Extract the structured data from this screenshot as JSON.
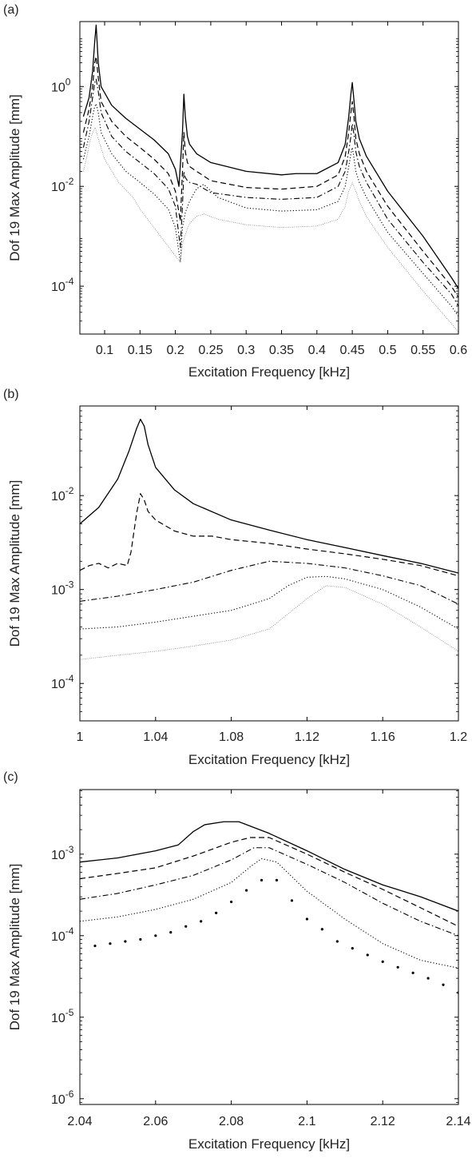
{
  "chart_data": [
    {
      "panel_label": "(a)",
      "type": "line",
      "xlabel": "Excitation Frequency [kHz]",
      "ylabel": "Dof 19 Max Amplitude [mm]",
      "xlim": [
        0.065,
        0.6
      ],
      "ylim": [
        1.1e-05,
        20
      ],
      "yscale": "log",
      "xticks": [
        0.1,
        0.15,
        0.2,
        0.25,
        0.3,
        0.35,
        0.4,
        0.45,
        0.5,
        0.55,
        0.6
      ],
      "xtick_labels": [
        "0.1",
        "0.15",
        "0.2",
        "0.25",
        "0.3",
        "0.35",
        "0.4",
        "0.45",
        "0.5",
        "0.55",
        "0.6"
      ],
      "yticks": [
        1,
        0.01,
        0.0001
      ],
      "ytick_labels": [
        {
          "base": "10",
          "exp": "0"
        },
        {
          "base": "10",
          "exp": "-2"
        },
        {
          "base": "10",
          "exp": "-4"
        }
      ],
      "grid": false,
      "series": [
        {
          "style": "solid",
          "x": [
            0.07,
            0.078,
            0.083,
            0.086,
            0.088,
            0.091,
            0.095,
            0.11,
            0.13,
            0.15,
            0.17,
            0.19,
            0.2,
            0.205,
            0.21,
            0.212,
            0.214,
            0.217,
            0.22,
            0.23,
            0.25,
            0.3,
            0.35,
            0.37,
            0.4,
            0.43,
            0.44,
            0.445,
            0.448,
            0.45,
            0.452,
            0.455,
            0.46,
            0.47,
            0.5,
            0.55,
            0.59,
            0.6
          ],
          "y": [
            0.25,
            0.6,
            2.0,
            8,
            17,
            3,
            1.0,
            0.42,
            0.23,
            0.14,
            0.085,
            0.045,
            0.022,
            0.01,
            0.12,
            0.7,
            0.25,
            0.1,
            0.07,
            0.045,
            0.03,
            0.02,
            0.017,
            0.018,
            0.018,
            0.03,
            0.07,
            0.25,
            0.7,
            1.2,
            0.6,
            0.2,
            0.09,
            0.04,
            0.008,
            0.001,
            0.00015,
            9e-05
          ]
        },
        {
          "style": "dashed",
          "x": [
            0.07,
            0.078,
            0.083,
            0.086,
            0.088,
            0.091,
            0.095,
            0.11,
            0.13,
            0.15,
            0.17,
            0.19,
            0.2,
            0.207,
            0.21,
            0.212,
            0.214,
            0.217,
            0.22,
            0.23,
            0.25,
            0.3,
            0.35,
            0.4,
            0.43,
            0.44,
            0.445,
            0.448,
            0.45,
            0.452,
            0.455,
            0.46,
            0.47,
            0.5,
            0.55,
            0.59,
            0.6
          ],
          "y": [
            0.12,
            0.35,
            1.0,
            3.0,
            4.0,
            1.5,
            0.5,
            0.2,
            0.1,
            0.06,
            0.035,
            0.018,
            0.008,
            0.002,
            0.02,
            0.12,
            0.05,
            0.03,
            0.025,
            0.02,
            0.013,
            0.0095,
            0.0088,
            0.01,
            0.017,
            0.04,
            0.12,
            0.3,
            0.5,
            0.28,
            0.09,
            0.045,
            0.02,
            0.004,
            0.0005,
            0.0001,
            6e-05
          ]
        },
        {
          "style": "dashdot",
          "x": [
            0.07,
            0.078,
            0.083,
            0.086,
            0.088,
            0.091,
            0.095,
            0.11,
            0.13,
            0.15,
            0.17,
            0.19,
            0.2,
            0.207,
            0.21,
            0.212,
            0.214,
            0.217,
            0.22,
            0.23,
            0.25,
            0.3,
            0.35,
            0.4,
            0.43,
            0.44,
            0.445,
            0.448,
            0.45,
            0.452,
            0.455,
            0.46,
            0.47,
            0.5,
            0.55,
            0.59,
            0.6
          ],
          "y": [
            0.06,
            0.2,
            0.6,
            1.2,
            1.4,
            0.8,
            0.3,
            0.1,
            0.05,
            0.03,
            0.018,
            0.009,
            0.004,
            0.0006,
            0.004,
            0.02,
            0.015,
            0.013,
            0.012,
            0.011,
            0.0075,
            0.006,
            0.0055,
            0.006,
            0.01,
            0.02,
            0.05,
            0.1,
            0.18,
            0.12,
            0.05,
            0.025,
            0.012,
            0.0022,
            0.0003,
            7e-05,
            4e-05
          ]
        },
        {
          "style": "dotted",
          "x": [
            0.07,
            0.078,
            0.083,
            0.086,
            0.088,
            0.091,
            0.095,
            0.11,
            0.13,
            0.15,
            0.17,
            0.19,
            0.2,
            0.207,
            0.21,
            0.214,
            0.22,
            0.23,
            0.24,
            0.26,
            0.3,
            0.35,
            0.4,
            0.43,
            0.44,
            0.445,
            0.448,
            0.45,
            0.452,
            0.455,
            0.46,
            0.47,
            0.5,
            0.55,
            0.59,
            0.6
          ],
          "y": [
            0.035,
            0.1,
            0.25,
            0.4,
            0.45,
            0.3,
            0.12,
            0.045,
            0.02,
            0.012,
            0.007,
            0.0035,
            0.0015,
            0.0003,
            0.0015,
            0.003,
            0.005,
            0.009,
            0.011,
            0.006,
            0.0037,
            0.0032,
            0.0034,
            0.005,
            0.01,
            0.025,
            0.045,
            0.06,
            0.04,
            0.02,
            0.012,
            0.006,
            0.0012,
            0.00018,
            4e-05,
            2.5e-05
          ]
        },
        {
          "style": "finedot",
          "x": [
            0.07,
            0.075,
            0.08,
            0.085,
            0.087,
            0.09,
            0.1,
            0.12,
            0.14,
            0.15,
            0.207,
            0.21,
            0.215,
            0.22,
            0.23,
            0.24,
            0.26,
            0.3,
            0.35,
            0.4,
            0.43,
            0.44,
            0.445,
            0.45,
            0.455,
            0.46,
            0.47,
            0.5,
            0.55,
            0.59,
            0.6
          ],
          "y": [
            0.02,
            0.04,
            0.09,
            0.14,
            0.15,
            0.1,
            0.035,
            0.012,
            0.006,
            0.0035,
            0.0003,
            0.0007,
            0.0012,
            0.0018,
            0.0025,
            0.0028,
            0.0022,
            0.0017,
            0.0015,
            0.0016,
            0.0022,
            0.004,
            0.008,
            0.012,
            0.008,
            0.005,
            0.0025,
            0.0006,
            8e-05,
            1.8e-05,
            1.2e-05
          ]
        }
      ]
    },
    {
      "panel_label": "(b)",
      "type": "line",
      "xlabel": "Excitation Frequency [kHz]",
      "ylabel": "Dof 19 Max Amplitude [mm]",
      "xlim": [
        1.0,
        1.2
      ],
      "ylim": [
        4e-05,
        0.09
      ],
      "yscale": "log",
      "xticks": [
        1.0,
        1.04,
        1.08,
        1.12,
        1.16,
        1.2
      ],
      "xtick_labels": [
        "1",
        "1.04",
        "1.08",
        "1.12",
        "1.16",
        "1.2"
      ],
      "yticks": [
        0.01,
        0.001,
        0.0001
      ],
      "ytick_labels": [
        {
          "base": "10",
          "exp": "-2"
        },
        {
          "base": "10",
          "exp": "-3"
        },
        {
          "base": "10",
          "exp": "-4"
        }
      ],
      "grid": false,
      "series": [
        {
          "style": "solid",
          "x": [
            1.0,
            1.01,
            1.02,
            1.026,
            1.03,
            1.032,
            1.034,
            1.036,
            1.04,
            1.05,
            1.06,
            1.08,
            1.1,
            1.12,
            1.14,
            1.16,
            1.18,
            1.2
          ],
          "y": [
            0.005,
            0.0075,
            0.015,
            0.03,
            0.052,
            0.065,
            0.055,
            0.035,
            0.02,
            0.0115,
            0.0082,
            0.0055,
            0.0043,
            0.0034,
            0.0028,
            0.0023,
            0.0019,
            0.0015
          ]
        },
        {
          "style": "dashed",
          "x": [
            1.0,
            1.005,
            1.01,
            1.015,
            1.02,
            1.025,
            1.027,
            1.03,
            1.032,
            1.034,
            1.036,
            1.04,
            1.05,
            1.06,
            1.07,
            1.08,
            1.1,
            1.12,
            1.14,
            1.16,
            1.18,
            1.2
          ],
          "y": [
            0.0016,
            0.0018,
            0.0019,
            0.0017,
            0.0019,
            0.0018,
            0.0025,
            0.0065,
            0.0105,
            0.009,
            0.0068,
            0.0055,
            0.0042,
            0.0037,
            0.0037,
            0.0034,
            0.0031,
            0.0027,
            0.0024,
            0.0021,
            0.0018,
            0.0014
          ]
        },
        {
          "style": "dashdot",
          "x": [
            1.0,
            1.02,
            1.04,
            1.06,
            1.08,
            1.1,
            1.12,
            1.14,
            1.16,
            1.18,
            1.2
          ],
          "y": [
            0.00075,
            0.00085,
            0.001,
            0.0012,
            0.0016,
            0.002,
            0.0019,
            0.0017,
            0.0014,
            0.0011,
            0.0007
          ]
        },
        {
          "style": "dotted",
          "x": [
            1.0,
            1.02,
            1.04,
            1.06,
            1.08,
            1.1,
            1.11,
            1.12,
            1.13,
            1.14,
            1.16,
            1.18,
            1.2
          ],
          "y": [
            0.00038,
            0.0004,
            0.00045,
            0.00052,
            0.0006,
            0.0008,
            0.0011,
            0.00135,
            0.00138,
            0.0013,
            0.001,
            0.00065,
            0.00038
          ]
        },
        {
          "style": "finedot",
          "x": [
            1.0,
            1.02,
            1.04,
            1.06,
            1.08,
            1.1,
            1.12,
            1.13,
            1.14,
            1.16,
            1.18,
            1.2
          ],
          "y": [
            0.00018,
            0.0002,
            0.00022,
            0.00025,
            0.00029,
            0.00038,
            0.0008,
            0.0011,
            0.00105,
            0.0007,
            0.0004,
            0.00022
          ]
        }
      ]
    },
    {
      "panel_label": "(c)",
      "type": "line",
      "xlabel": "Excitation Frequency [kHz]",
      "ylabel": "Dof 19 Max Amplitude [mm]",
      "xlim": [
        2.04,
        2.14
      ],
      "ylim": [
        8.5e-07,
        0.0062
      ],
      "yscale": "log",
      "xticks": [
        2.04,
        2.06,
        2.08,
        2.1,
        2.12,
        2.14
      ],
      "xtick_labels": [
        "2.04",
        "2.06",
        "2.08",
        "2.1",
        "2.12",
        "2.14"
      ],
      "yticks": [
        0.001,
        0.0001,
        1e-05,
        1e-06
      ],
      "ytick_labels": [
        {
          "base": "10",
          "exp": "-3"
        },
        {
          "base": "10",
          "exp": "-4"
        },
        {
          "base": "10",
          "exp": "-5"
        },
        {
          "base": "10",
          "exp": "-6"
        }
      ],
      "grid": false,
      "series": [
        {
          "style": "solid",
          "x": [
            2.04,
            2.05,
            2.06,
            2.066,
            2.07,
            2.073,
            2.078,
            2.082,
            2.09,
            2.1,
            2.11,
            2.12,
            2.13,
            2.14
          ],
          "y": [
            0.0008,
            0.0009,
            0.0011,
            0.0013,
            0.0019,
            0.0023,
            0.0025,
            0.0025,
            0.0018,
            0.0011,
            0.00065,
            0.00042,
            0.0003,
            0.0002
          ]
        },
        {
          "style": "dashed",
          "x": [
            2.04,
            2.05,
            2.06,
            2.07,
            2.08,
            2.085,
            2.09,
            2.1,
            2.11,
            2.12,
            2.13,
            2.14
          ],
          "y": [
            0.0005,
            0.00058,
            0.00068,
            0.00095,
            0.0014,
            0.0016,
            0.0016,
            0.001,
            0.0006,
            0.00037,
            0.00022,
            0.00013
          ]
        },
        {
          "style": "dashdot",
          "x": [
            2.04,
            2.05,
            2.06,
            2.07,
            2.08,
            2.086,
            2.09,
            2.1,
            2.11,
            2.12,
            2.13,
            2.14
          ],
          "y": [
            0.00028,
            0.00033,
            0.00042,
            0.00055,
            0.00085,
            0.0012,
            0.0012,
            0.00075,
            0.00045,
            0.00025,
            0.00015,
            0.0001
          ]
        },
        {
          "style": "dotted",
          "x": [
            2.04,
            2.05,
            2.06,
            2.07,
            2.08,
            2.085,
            2.088,
            2.092,
            2.1,
            2.11,
            2.12,
            2.13,
            2.14
          ],
          "y": [
            0.00015,
            0.00017,
            0.00021,
            0.00028,
            0.00045,
            0.0007,
            0.00088,
            0.0008,
            0.00035,
            0.00016,
            8e-05,
            5e-05,
            4e-05
          ]
        },
        {
          "style": "markers",
          "x": [
            2.044,
            2.048,
            2.052,
            2.056,
            2.06,
            2.064,
            2.068,
            2.072,
            2.076,
            2.08,
            2.084,
            2.088,
            2.092,
            2.096,
            2.1,
            2.104,
            2.108,
            2.112,
            2.116,
            2.12,
            2.124,
            2.128,
            2.132,
            2.136,
            2.14
          ],
          "y": [
            7.5e-05,
            8e-05,
            8.5e-05,
            9e-05,
            0.0001,
            0.00011,
            0.00013,
            0.00015,
            0.00019,
            0.00026,
            0.00036,
            0.00048,
            0.00048,
            0.00027,
            0.00016,
            0.00012,
            8.5e-05,
            7e-05,
            5.8e-05,
            4.8e-05,
            4.1e-05,
            3.5e-05,
            3e-05,
            2.5e-05,
            2e-05
          ]
        }
      ]
    }
  ]
}
